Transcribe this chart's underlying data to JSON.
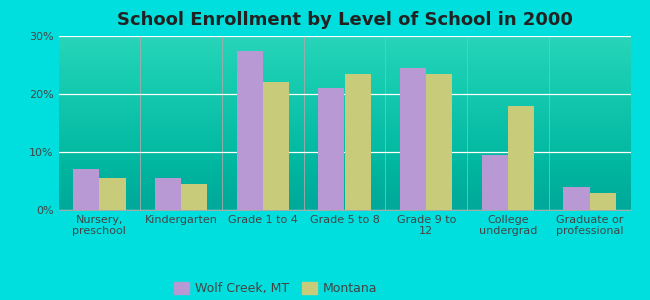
{
  "title": "School Enrollment by Level of School in 2000",
  "categories": [
    "Nursery,\npreschool",
    "Kindergarten",
    "Grade 1 to 4",
    "Grade 5 to 8",
    "Grade 9 to\n12",
    "College\nundergrad",
    "Graduate or\nprofessional"
  ],
  "wolf_creek": [
    7.0,
    5.5,
    27.5,
    21.0,
    24.5,
    9.5,
    4.0
  ],
  "montana": [
    5.5,
    4.5,
    22.0,
    23.5,
    23.5,
    18.0,
    3.0
  ],
  "wolf_creek_color": "#b899d4",
  "montana_color": "#c8cc7a",
  "background_top": "#ffffff",
  "background_bottom": "#d4edcc",
  "outer_background": "#00dede",
  "ylim": [
    0,
    30
  ],
  "yticks": [
    0,
    10,
    20,
    30
  ],
  "bar_width": 0.32,
  "legend_wolf": "Wolf Creek, MT",
  "legend_montana": "Montana",
  "title_fontsize": 13,
  "tick_fontsize": 8,
  "legend_fontsize": 9
}
